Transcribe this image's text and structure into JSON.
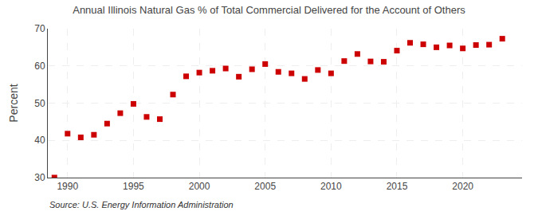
{
  "chart_data": {
    "type": "scatter",
    "title": "Annual Illinois Natural Gas % of Total Commercial Delivered for the Account of Others",
    "ylabel": "Percent",
    "annotations": [
      "Source: U.S. Energy Information Administration"
    ],
    "x": [
      1989,
      1990,
      1991,
      1992,
      1993,
      1994,
      1995,
      1996,
      1997,
      1998,
      1999,
      2000,
      2001,
      2002,
      2003,
      2004,
      2005,
      2006,
      2007,
      2008,
      2009,
      2010,
      2011,
      2012,
      2013,
      2014,
      2015,
      2016,
      2017,
      2018,
      2019,
      2020,
      2021,
      2022,
      2023
    ],
    "values": [
      30.0,
      41.8,
      40.8,
      41.5,
      44.5,
      47.3,
      49.8,
      46.3,
      45.7,
      52.3,
      57.2,
      58.2,
      58.7,
      59.3,
      57.1,
      59.1,
      60.5,
      58.4,
      58.0,
      56.5,
      58.9,
      58.0,
      61.3,
      63.2,
      61.2,
      61.1,
      64.1,
      66.2,
      65.8,
      65.0,
      65.5,
      64.7,
      65.6,
      65.7,
      67.3
    ],
    "color": "#cc0000",
    "marker": "square",
    "xlim": [
      1988.5,
      2024.5
    ],
    "xticks": [
      1990,
      1995,
      2000,
      2005,
      2010,
      2015,
      2020
    ],
    "ylim": [
      30,
      70
    ],
    "yticks": [
      30,
      40,
      50,
      60,
      70
    ],
    "grid": true
  }
}
